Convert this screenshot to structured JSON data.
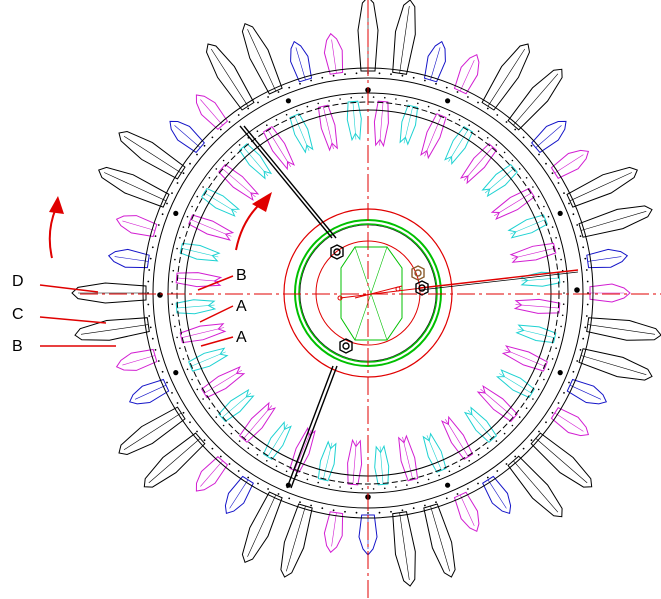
{
  "labels": {
    "left_d": "D",
    "left_c": "C",
    "left_b": "B",
    "inner_b": "B",
    "inner_a1": "A",
    "inner_a2": "A"
  },
  "colors": {
    "outline": "#000000",
    "blue": "#1414c8",
    "magenta": "#d21ed2",
    "cyan": "#1ed2d2",
    "red": "#e00000",
    "green": "#00c000",
    "nut": "#8a5a2a"
  },
  "rings": {
    "outer_blade_count": 44,
    "inner_blade_count": 40,
    "outer_cycle": [
      "outline",
      "outline",
      "blue",
      "magenta"
    ],
    "inner_cycle": [
      "magenta",
      "cyan"
    ]
  }
}
